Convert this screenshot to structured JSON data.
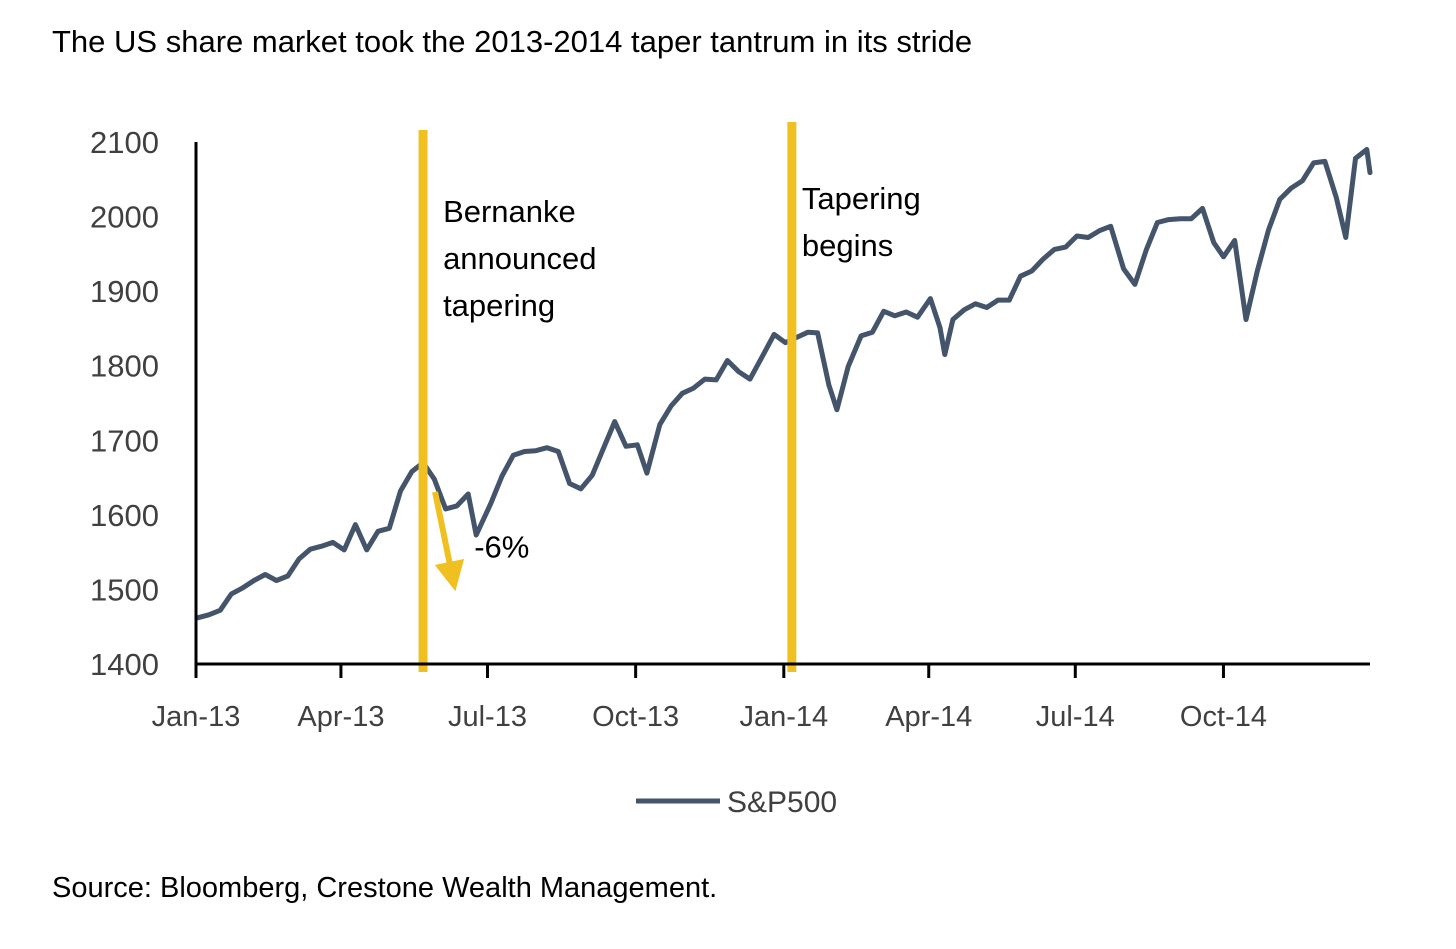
{
  "title": "The US share market took the 2013-2014 taper tantrum in its stride",
  "source": "Source: Bloomberg, Crestone Wealth Management.",
  "chart_data": {
    "type": "line",
    "title": "The US share market took the 2013-2014 taper tantrum in its stride",
    "ylim": [
      1400,
      2100
    ],
    "y_ticks": [
      "2100",
      "2000",
      "1900",
      "1800",
      "1700",
      "1600",
      "1500",
      "1400"
    ],
    "x_ticks": [
      "Jan-13",
      "Apr-13",
      "Jul-13",
      "Oct-13",
      "Jan-14",
      "Apr-14",
      "Jul-14",
      "Oct-14"
    ],
    "xlim": [
      "2013-01-01",
      "2014-12-31"
    ],
    "grid": false,
    "legend_position": "bottom",
    "colors": {
      "series": "#44546A",
      "annotation": "#F0C020"
    },
    "series": [
      {
        "name": "S&P500",
        "points": [
          [
            "2013-01-02",
            1462
          ],
          [
            "2013-01-09",
            1466
          ],
          [
            "2013-01-16",
            1472
          ],
          [
            "2013-01-23",
            1494
          ],
          [
            "2013-01-30",
            1502
          ],
          [
            "2013-02-06",
            1512
          ],
          [
            "2013-02-13",
            1520
          ],
          [
            "2013-02-20",
            1512
          ],
          [
            "2013-02-27",
            1518
          ],
          [
            "2013-03-06",
            1541
          ],
          [
            "2013-03-13",
            1554
          ],
          [
            "2013-03-20",
            1558
          ],
          [
            "2013-03-27",
            1563
          ],
          [
            "2013-04-03",
            1553
          ],
          [
            "2013-04-10",
            1587
          ],
          [
            "2013-04-17",
            1553
          ],
          [
            "2013-04-24",
            1578
          ],
          [
            "2013-05-01",
            1582
          ],
          [
            "2013-05-08",
            1632
          ],
          [
            "2013-05-15",
            1658
          ],
          [
            "2013-05-22",
            1670
          ],
          [
            "2013-05-29",
            1648
          ],
          [
            "2013-06-05",
            1608
          ],
          [
            "2013-06-12",
            1612
          ],
          [
            "2013-06-19",
            1628
          ],
          [
            "2013-06-24",
            1573
          ],
          [
            "2013-07-03",
            1615
          ],
          [
            "2013-07-10",
            1652
          ],
          [
            "2013-07-17",
            1680
          ],
          [
            "2013-07-24",
            1685
          ],
          [
            "2013-07-31",
            1686
          ],
          [
            "2013-08-07",
            1690
          ],
          [
            "2013-08-14",
            1685
          ],
          [
            "2013-08-21",
            1642
          ],
          [
            "2013-08-28",
            1635
          ],
          [
            "2013-09-04",
            1653
          ],
          [
            "2013-09-11",
            1689
          ],
          [
            "2013-09-18",
            1725
          ],
          [
            "2013-09-25",
            1692
          ],
          [
            "2013-10-02",
            1694
          ],
          [
            "2013-10-08",
            1656
          ],
          [
            "2013-10-16",
            1721
          ],
          [
            "2013-10-23",
            1746
          ],
          [
            "2013-10-30",
            1763
          ],
          [
            "2013-11-06",
            1770
          ],
          [
            "2013-11-13",
            1782
          ],
          [
            "2013-11-20",
            1781
          ],
          [
            "2013-11-27",
            1807
          ],
          [
            "2013-12-04",
            1792
          ],
          [
            "2013-12-11",
            1782
          ],
          [
            "2013-12-18",
            1810
          ],
          [
            "2013-12-26",
            1842
          ],
          [
            "2014-01-02",
            1831
          ],
          [
            "2014-01-09",
            1838
          ],
          [
            "2014-01-16",
            1845
          ],
          [
            "2014-01-22",
            1844
          ],
          [
            "2014-01-29",
            1774
          ],
          [
            "2014-02-03",
            1741
          ],
          [
            "2014-02-10",
            1799
          ],
          [
            "2014-02-18",
            1840
          ],
          [
            "2014-02-25",
            1845
          ],
          [
            "2014-03-04",
            1873
          ],
          [
            "2014-03-11",
            1867
          ],
          [
            "2014-03-18",
            1872
          ],
          [
            "2014-03-25",
            1865
          ],
          [
            "2014-04-02",
            1890
          ],
          [
            "2014-04-08",
            1851
          ],
          [
            "2014-04-11",
            1815
          ],
          [
            "2014-04-16",
            1862
          ],
          [
            "2014-04-23",
            1875
          ],
          [
            "2014-04-30",
            1883
          ],
          [
            "2014-05-07",
            1878
          ],
          [
            "2014-05-14",
            1888
          ],
          [
            "2014-05-21",
            1888
          ],
          [
            "2014-05-28",
            1920
          ],
          [
            "2014-06-04",
            1927
          ],
          [
            "2014-06-11",
            1943
          ],
          [
            "2014-06-18",
            1956
          ],
          [
            "2014-06-25",
            1959
          ],
          [
            "2014-07-02",
            1974
          ],
          [
            "2014-07-09",
            1972
          ],
          [
            "2014-07-16",
            1981
          ],
          [
            "2014-07-23",
            1987
          ],
          [
            "2014-07-31",
            1930
          ],
          [
            "2014-08-07",
            1909
          ],
          [
            "2014-08-14",
            1955
          ],
          [
            "2014-08-21",
            1992
          ],
          [
            "2014-08-28",
            1996
          ],
          [
            "2014-09-04",
            1997
          ],
          [
            "2014-09-11",
            1997
          ],
          [
            "2014-09-18",
            2011
          ],
          [
            "2014-09-25",
            1965
          ],
          [
            "2014-10-01",
            1946
          ],
          [
            "2014-10-08",
            1968
          ],
          [
            "2014-10-15",
            1862
          ],
          [
            "2014-10-22",
            1927
          ],
          [
            "2014-10-29",
            1982
          ],
          [
            "2014-11-05",
            2023
          ],
          [
            "2014-11-12",
            2038
          ],
          [
            "2014-11-19",
            2048
          ],
          [
            "2014-11-26",
            2072
          ],
          [
            "2014-12-03",
            2074
          ],
          [
            "2014-12-10",
            2026
          ],
          [
            "2014-12-16",
            1972
          ],
          [
            "2014-12-22",
            2078
          ],
          [
            "2014-12-29",
            2090
          ],
          [
            "2014-12-31",
            2059
          ]
        ]
      }
    ],
    "annotations": [
      {
        "type": "vertical-line",
        "x": "2013-05-22",
        "label": "Bernanke announced tapering",
        "label_lines": [
          "Bernanke",
          "announced",
          "tapering"
        ]
      },
      {
        "type": "vertical-line",
        "x": "2014-01-06",
        "label": "Tapering begins",
        "label_lines": [
          "Tapering",
          "begins"
        ]
      },
      {
        "type": "arrow",
        "x": "2013-05-22",
        "y": 1620,
        "x_end": "2013-06-24",
        "y_end": 1500,
        "label": "-6%"
      }
    ]
  }
}
